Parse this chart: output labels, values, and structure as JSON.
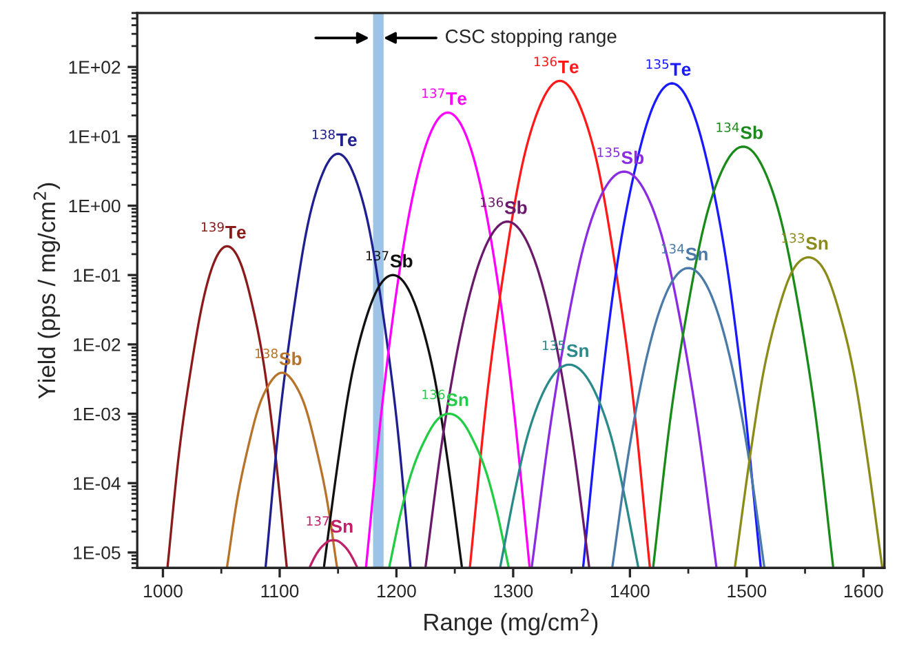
{
  "chart_data": {
    "type": "line",
    "xlabel": "Range (mg/cm$^{2}$)",
    "ylabel": "Yield (pps / mg/cm$^{2}$)",
    "log": "y",
    "grid": false,
    "legend": false,
    "marker": "none",
    "line_style": "solid",
    "xlim": [
      978,
      1618
    ],
    "xticks": [
      1000,
      1100,
      1200,
      1300,
      1400,
      1500,
      1600
    ],
    "ylim": [
      6e-06,
      600
    ],
    "yticks": [
      {
        "value": 1e-05,
        "label": "1E-05"
      },
      {
        "value": 0.0001,
        "label": "1E-04"
      },
      {
        "value": 0.001,
        "label": "1E-03"
      },
      {
        "value": 0.01,
        "label": "1E-02"
      },
      {
        "value": 0.1,
        "label": "1E-01"
      },
      {
        "value": 1,
        "label": "1E+00"
      },
      {
        "value": 10,
        "label": "1E+01"
      },
      {
        "value": 100,
        "label": "1E+02"
      }
    ],
    "bands": [
      {
        "axis": "x",
        "from": 1180,
        "to": 1189,
        "label": "CSC stopping range",
        "color": "#9dc3e6"
      }
    ],
    "series": [
      {
        "name": "$^{139}$Te",
        "color": "#8b1a1a",
        "x": [
          1004,
          1014,
          1025,
          1035,
          1045,
          1055,
          1065,
          1075,
          1086,
          1096,
          1106
        ],
        "values": [
          6.3e-06,
          0.00029,
          0.0057,
          0.0475,
          0.17,
          0.26,
          0.17,
          0.0475,
          0.0057,
          0.00029,
          6.3e-06
        ]
      },
      {
        "name": "$^{138}$Te",
        "color": "#1f1f8f",
        "x": [
          1088,
          1100,
          1113,
          1125,
          1138,
          1150,
          1162,
          1175,
          1187,
          1200,
          1212
        ],
        "values": [
          6.3e-06,
          0.00087,
          0.041,
          0.63,
          3.25,
          5.6,
          3.25,
          0.63,
          0.041,
          0.00087,
          6.3e-06
        ]
      },
      {
        "name": "$^{137}$Te",
        "color": "#ff00ff",
        "x": [
          1174,
          1188,
          1202,
          1216,
          1230,
          1244,
          1258,
          1272,
          1286,
          1300,
          1314
        ],
        "values": [
          6.3e-06,
          0.00143,
          0.097,
          1.97,
          12,
          22,
          12,
          1.97,
          0.097,
          0.00143,
          6.3e-06
        ]
      },
      {
        "name": "$^{136}$Te",
        "color": "#ff1a1a",
        "x": [
          1263,
          1278,
          1294,
          1309,
          1325,
          1340,
          1355,
          1371,
          1386,
          1402,
          1417
        ],
        "values": [
          6.3e-06,
          0.0021,
          0.19,
          4.8,
          33,
          63,
          33,
          4.8,
          0.19,
          0.0021,
          6.3e-06
        ]
      },
      {
        "name": "$^{135}$Te",
        "color": "#1a1aff",
        "x": [
          1360,
          1375,
          1390,
          1406,
          1421,
          1436,
          1451,
          1466,
          1482,
          1497,
          1512
        ],
        "values": [
          6.3e-06,
          0.002,
          0.18,
          4.4,
          30,
          58,
          30,
          4.4,
          0.18,
          0.002,
          6.3e-06
        ]
      },
      {
        "name": "$^{138}$Sb",
        "color": "#b8732a",
        "x": [
          1055,
          1064,
          1074,
          1083,
          1093,
          1102,
          1111,
          1121,
          1130,
          1140,
          1149
        ],
        "values": [
          6.3e-06,
          6.4e-05,
          0.00039,
          0.00139,
          0.003,
          0.0039,
          0.003,
          0.00139,
          0.00039,
          6.4e-05,
          6.3e-06
        ]
      },
      {
        "name": "$^{137}$Sb",
        "color": "#111111",
        "x": [
          1138,
          1150,
          1161,
          1173,
          1185,
          1197,
          1209,
          1221,
          1233,
          1244,
          1256
        ],
        "values": [
          6.3e-06,
          0.000205,
          0.0031,
          0.021,
          0.068,
          0.1,
          0.068,
          0.021,
          0.0031,
          0.000205,
          6.3e-06
        ]
      },
      {
        "name": "$^{136}$Sb",
        "color": "#6b1a6b",
        "x": [
          1225,
          1239,
          1253,
          1267,
          1281,
          1295,
          1309,
          1323,
          1337,
          1351,
          1365
        ],
        "values": [
          6.3e-06,
          0.00039,
          0.0096,
          0.094,
          0.37,
          0.59,
          0.37,
          0.094,
          0.0096,
          0.00039,
          6.3e-06
        ]
      },
      {
        "name": "$^{135}$Sb",
        "color": "#8b2be2",
        "x": [
          1316,
          1332,
          1348,
          1363,
          1379,
          1395,
          1411,
          1427,
          1442,
          1458,
          1474
        ],
        "values": [
          6.3e-06,
          0.0007,
          0.028,
          0.38,
          1.83,
          3.1,
          1.83,
          0.38,
          0.028,
          0.0007,
          6.3e-06
        ]
      },
      {
        "name": "$^{134}$Sb",
        "color": "#1a8a1a",
        "x": [
          1420,
          1435,
          1451,
          1466,
          1482,
          1497,
          1512,
          1528,
          1543,
          1559,
          1574
        ],
        "values": [
          6.3e-06,
          0.00095,
          0.047,
          0.76,
          4.1,
          7.1,
          4.1,
          0.76,
          0.047,
          0.00095,
          6.3e-06
        ]
      },
      {
        "name": "$^{137}$Sn",
        "color": "#c0206a",
        "x": [
          1126,
          1130,
          1134,
          1138,
          1142,
          1146,
          1150,
          1154,
          1158,
          1162,
          1166
        ],
        "values": [
          6.3e-06,
          8.6e-06,
          1.1e-05,
          1.3e-05,
          1.46e-05,
          1.5e-05,
          1.46e-05,
          1.3e-05,
          1.1e-05,
          8.6e-06,
          6.3e-06
        ]
      },
      {
        "name": "$^{136}$Sn",
        "color": "#22cc44",
        "x": [
          1194,
          1204,
          1214,
          1225,
          1235,
          1245,
          1255,
          1265,
          1276,
          1286,
          1296
        ],
        "values": [
          6.3e-06,
          3.9e-05,
          0.00016,
          0.00044,
          0.00082,
          0.001,
          0.00082,
          0.00044,
          0.00016,
          3.9e-05,
          6.3e-06
        ]
      },
      {
        "name": "$^{135}$Sn",
        "color": "#2a8a8a",
        "x": [
          1289,
          1301,
          1312,
          1324,
          1336,
          1348,
          1360,
          1372,
          1384,
          1395,
          1407
        ],
        "values": [
          6.3e-06,
          7e-05,
          0.00046,
          0.00175,
          0.0039,
          0.0051,
          0.0039,
          0.00175,
          0.00046,
          7e-05,
          6.3e-06
        ]
      },
      {
        "name": "$^{134}$Sn",
        "color": "#4a7aa8",
        "x": [
          1385,
          1398,
          1411,
          1424,
          1437,
          1450,
          1463,
          1476,
          1489,
          1502,
          1515
        ],
        "values": [
          6.3e-06,
          0.00022,
          0.0036,
          0.026,
          0.085,
          0.126,
          0.085,
          0.026,
          0.0036,
          0.00022,
          6.3e-06
        ]
      },
      {
        "name": "$^{133}$Sn",
        "color": "#8b8b1a",
        "x": [
          1490,
          1503,
          1515,
          1528,
          1540,
          1553,
          1566,
          1578,
          1591,
          1603,
          1616
        ],
        "values": [
          6.3e-06,
          0.00025,
          0.0045,
          0.035,
          0.121,
          0.18,
          0.121,
          0.035,
          0.0045,
          0.00025,
          6.3e-06
        ]
      }
    ]
  }
}
